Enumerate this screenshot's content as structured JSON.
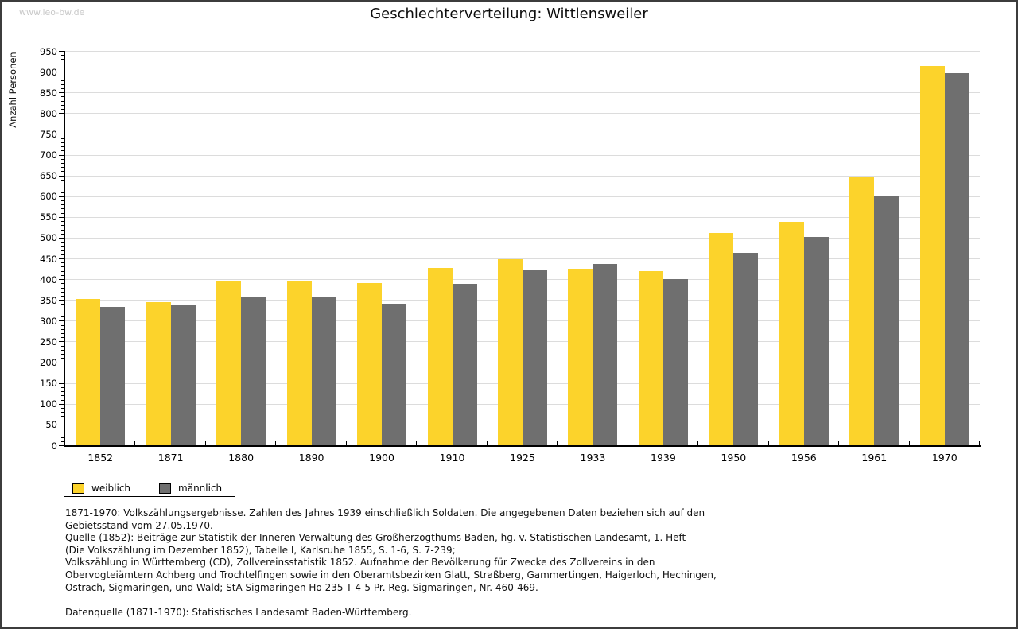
{
  "watermark": "www.leo-bw.de",
  "title": "Geschlechterverteilung: Wittlensweiler",
  "chart_data": {
    "type": "bar",
    "title": "Geschlechterverteilung: Wittlensweiler",
    "xlabel": "",
    "ylabel": "Anzahl Personen",
    "ylim": [
      0,
      950
    ],
    "ytick_step": 50,
    "minor_tick_step": 10,
    "grid": true,
    "legend_position": "bottom-left",
    "categories": [
      "1852",
      "1871",
      "1880",
      "1890",
      "1900",
      "1910",
      "1925",
      "1933",
      "1939",
      "1950",
      "1956",
      "1961",
      "1970"
    ],
    "series": [
      {
        "name": "weiblich",
        "color": "#fcd32b",
        "values": [
          352,
          344,
          396,
          395,
          391,
          427,
          449,
          425,
          420,
          511,
          538,
          647,
          913
        ]
      },
      {
        "name": "männlich",
        "color": "#6f6f6f",
        "values": [
          333,
          338,
          359,
          357,
          340,
          389,
          422,
          437,
          401,
          463,
          501,
          602,
          896
        ]
      }
    ]
  },
  "footer": {
    "source_lines": [
      "1871-1970: Volkszählungsergebnisse. Zahlen des Jahres 1939 einschließlich Soldaten. Die angegebenen Daten beziehen sich auf den",
      "Gebietsstand vom 27.05.1970.",
      "Quelle (1852): Beiträge zur Statistik der Inneren Verwaltung des Großherzogthums Baden, hg. v. Statistischen Landesamt, 1. Heft",
      "(Die Volkszählung im Dezember 1852), Tabelle I, Karlsruhe 1855, S. 1-6, S. 7-239;",
      "Volkszählung in Württemberg (CD), Zollvereinsstatistik 1852. Aufnahme der Bevölkerung für Zwecke des Zollvereins in den",
      "Obervogteiämtern Achberg und Trochtelfingen sowie in den Oberamtsbezirken Glatt, Straßberg, Gammertingen, Haigerloch, Hechingen,",
      "Ostrach, Sigmaringen, und Wald; StA Sigmaringen Ho 235 T 4-5 Pr. Reg. Sigmaringen, Nr. 460-469."
    ],
    "datasource": "Datenquelle (1871-1970): Statistisches Landesamt Baden-Württemberg."
  },
  "colors": {
    "weiblich": "#fcd32b",
    "männlich": "#6f6f6f",
    "gridline": "#dcdcdc",
    "axis": "#000000",
    "watermark": "#c9c9c9",
    "page_border": "#3c3c3c",
    "background": "#ffffff"
  }
}
